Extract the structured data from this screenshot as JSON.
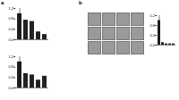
{
  "panel_labels": [
    "a",
    "b"
  ],
  "image_grid": {
    "rows": 3,
    "cols": 4
  },
  "chart_data": [
    {
      "type": "bar",
      "categories": [
        null,
        null,
        null,
        null,
        null
      ],
      "values": [
        1.0,
        0.75,
        0.7,
        0.3,
        0.2
      ],
      "color": "#222222",
      "ylim": [
        0,
        1.2
      ],
      "yticks": [
        0,
        0.4,
        0.8,
        1.2
      ]
    },
    {
      "type": "bar",
      "categories": [
        null,
        null,
        null,
        null,
        null
      ],
      "values": [
        1.0,
        0.55,
        0.5,
        0.3,
        0.45
      ],
      "color": "#222222",
      "ylim": [
        0,
        1.2
      ],
      "yticks": [
        0,
        0.4,
        0.8,
        1.2
      ]
    },
    {
      "type": "bar",
      "categories": [
        null,
        null,
        null,
        null,
        null
      ],
      "values": [
        1.0,
        0.1,
        0.05,
        0.05,
        0.05
      ],
      "color": "#222222",
      "ylim": [
        0,
        1.2
      ],
      "yticks": [
        0,
        0.4,
        0.8,
        1.2
      ]
    }
  ]
}
